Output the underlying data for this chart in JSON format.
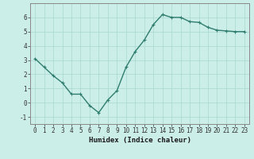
{
  "x": [
    0,
    1,
    2,
    3,
    4,
    5,
    6,
    7,
    8,
    9,
    10,
    11,
    12,
    13,
    14,
    15,
    16,
    17,
    18,
    19,
    20,
    21,
    22,
    23
  ],
  "y": [
    3.1,
    2.5,
    1.9,
    1.4,
    0.6,
    0.6,
    -0.2,
    -0.7,
    0.2,
    0.85,
    2.5,
    3.6,
    4.4,
    5.5,
    6.2,
    6.0,
    6.0,
    5.7,
    5.65,
    5.3,
    5.1,
    5.05,
    5.0,
    5.0
  ],
  "line_color": "#2e7d6e",
  "marker": "+",
  "marker_color": "#2e7d6e",
  "bg_color": "#cceee8",
  "grid_color": "#a8d8d0",
  "xlabel": "Humidex (Indice chaleur)",
  "xlim": [
    -0.5,
    23.5
  ],
  "ylim": [
    -1.5,
    7.0
  ],
  "yticks": [
    -1,
    0,
    1,
    2,
    3,
    4,
    5,
    6
  ],
  "xticks": [
    0,
    1,
    2,
    3,
    4,
    5,
    6,
    7,
    8,
    9,
    10,
    11,
    12,
    13,
    14,
    15,
    16,
    17,
    18,
    19,
    20,
    21,
    22,
    23
  ],
  "xtick_labels": [
    "0",
    "1",
    "2",
    "3",
    "4",
    "5",
    "6",
    "7",
    "8",
    "9",
    "10",
    "11",
    "12",
    "13",
    "14",
    "15",
    "16",
    "17",
    "18",
    "19",
    "20",
    "21",
    "22",
    "23"
  ],
  "linewidth": 1.0,
  "markersize": 3.5,
  "xlabel_fontsize": 6.5,
  "tick_fontsize": 5.5
}
